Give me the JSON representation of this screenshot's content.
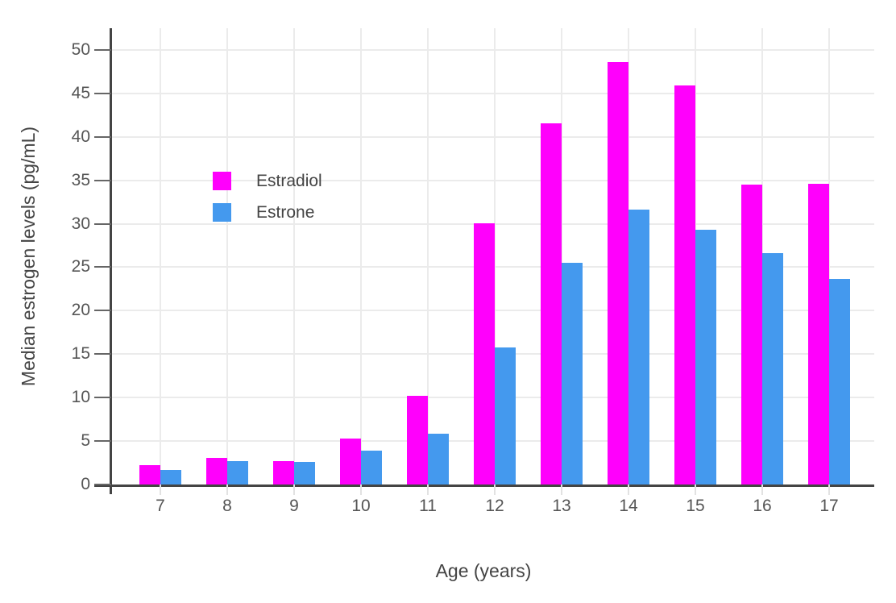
{
  "chart_data": {
    "type": "bar",
    "title": "",
    "xlabel": "Age (years)",
    "ylabel": "Median estrogen levels (pg/mL)",
    "categories": [
      "7",
      "8",
      "9",
      "10",
      "11",
      "12",
      "13",
      "14",
      "15",
      "16",
      "17"
    ],
    "series": [
      {
        "name": "Estradiol",
        "color": "#ff00fc",
        "values": [
          2.2,
          3.1,
          2.7,
          5.3,
          10.2,
          30.1,
          41.6,
          48.6,
          45.9,
          34.5,
          34.6
        ]
      },
      {
        "name": "Estrone",
        "color": "#4499ee",
        "values": [
          1.7,
          2.7,
          2.6,
          3.9,
          5.8,
          15.8,
          25.5,
          31.6,
          29.3,
          26.6,
          23.7
        ]
      }
    ],
    "yticks": [
      0,
      5,
      10,
      15,
      20,
      25,
      30,
      35,
      40,
      45,
      50
    ],
    "ylim": [
      0,
      52.5
    ],
    "grid": true,
    "legend_position": "inside-top-left",
    "colors": {
      "background": "#ffffff",
      "grid": "#ebebeb",
      "axis_line": "#444444",
      "tick_mark": "#666666",
      "x_tick_mark": "#e2e2e2",
      "tick_label": "#555555",
      "axis_title": "#444444",
      "legend_text": "#444444"
    }
  }
}
